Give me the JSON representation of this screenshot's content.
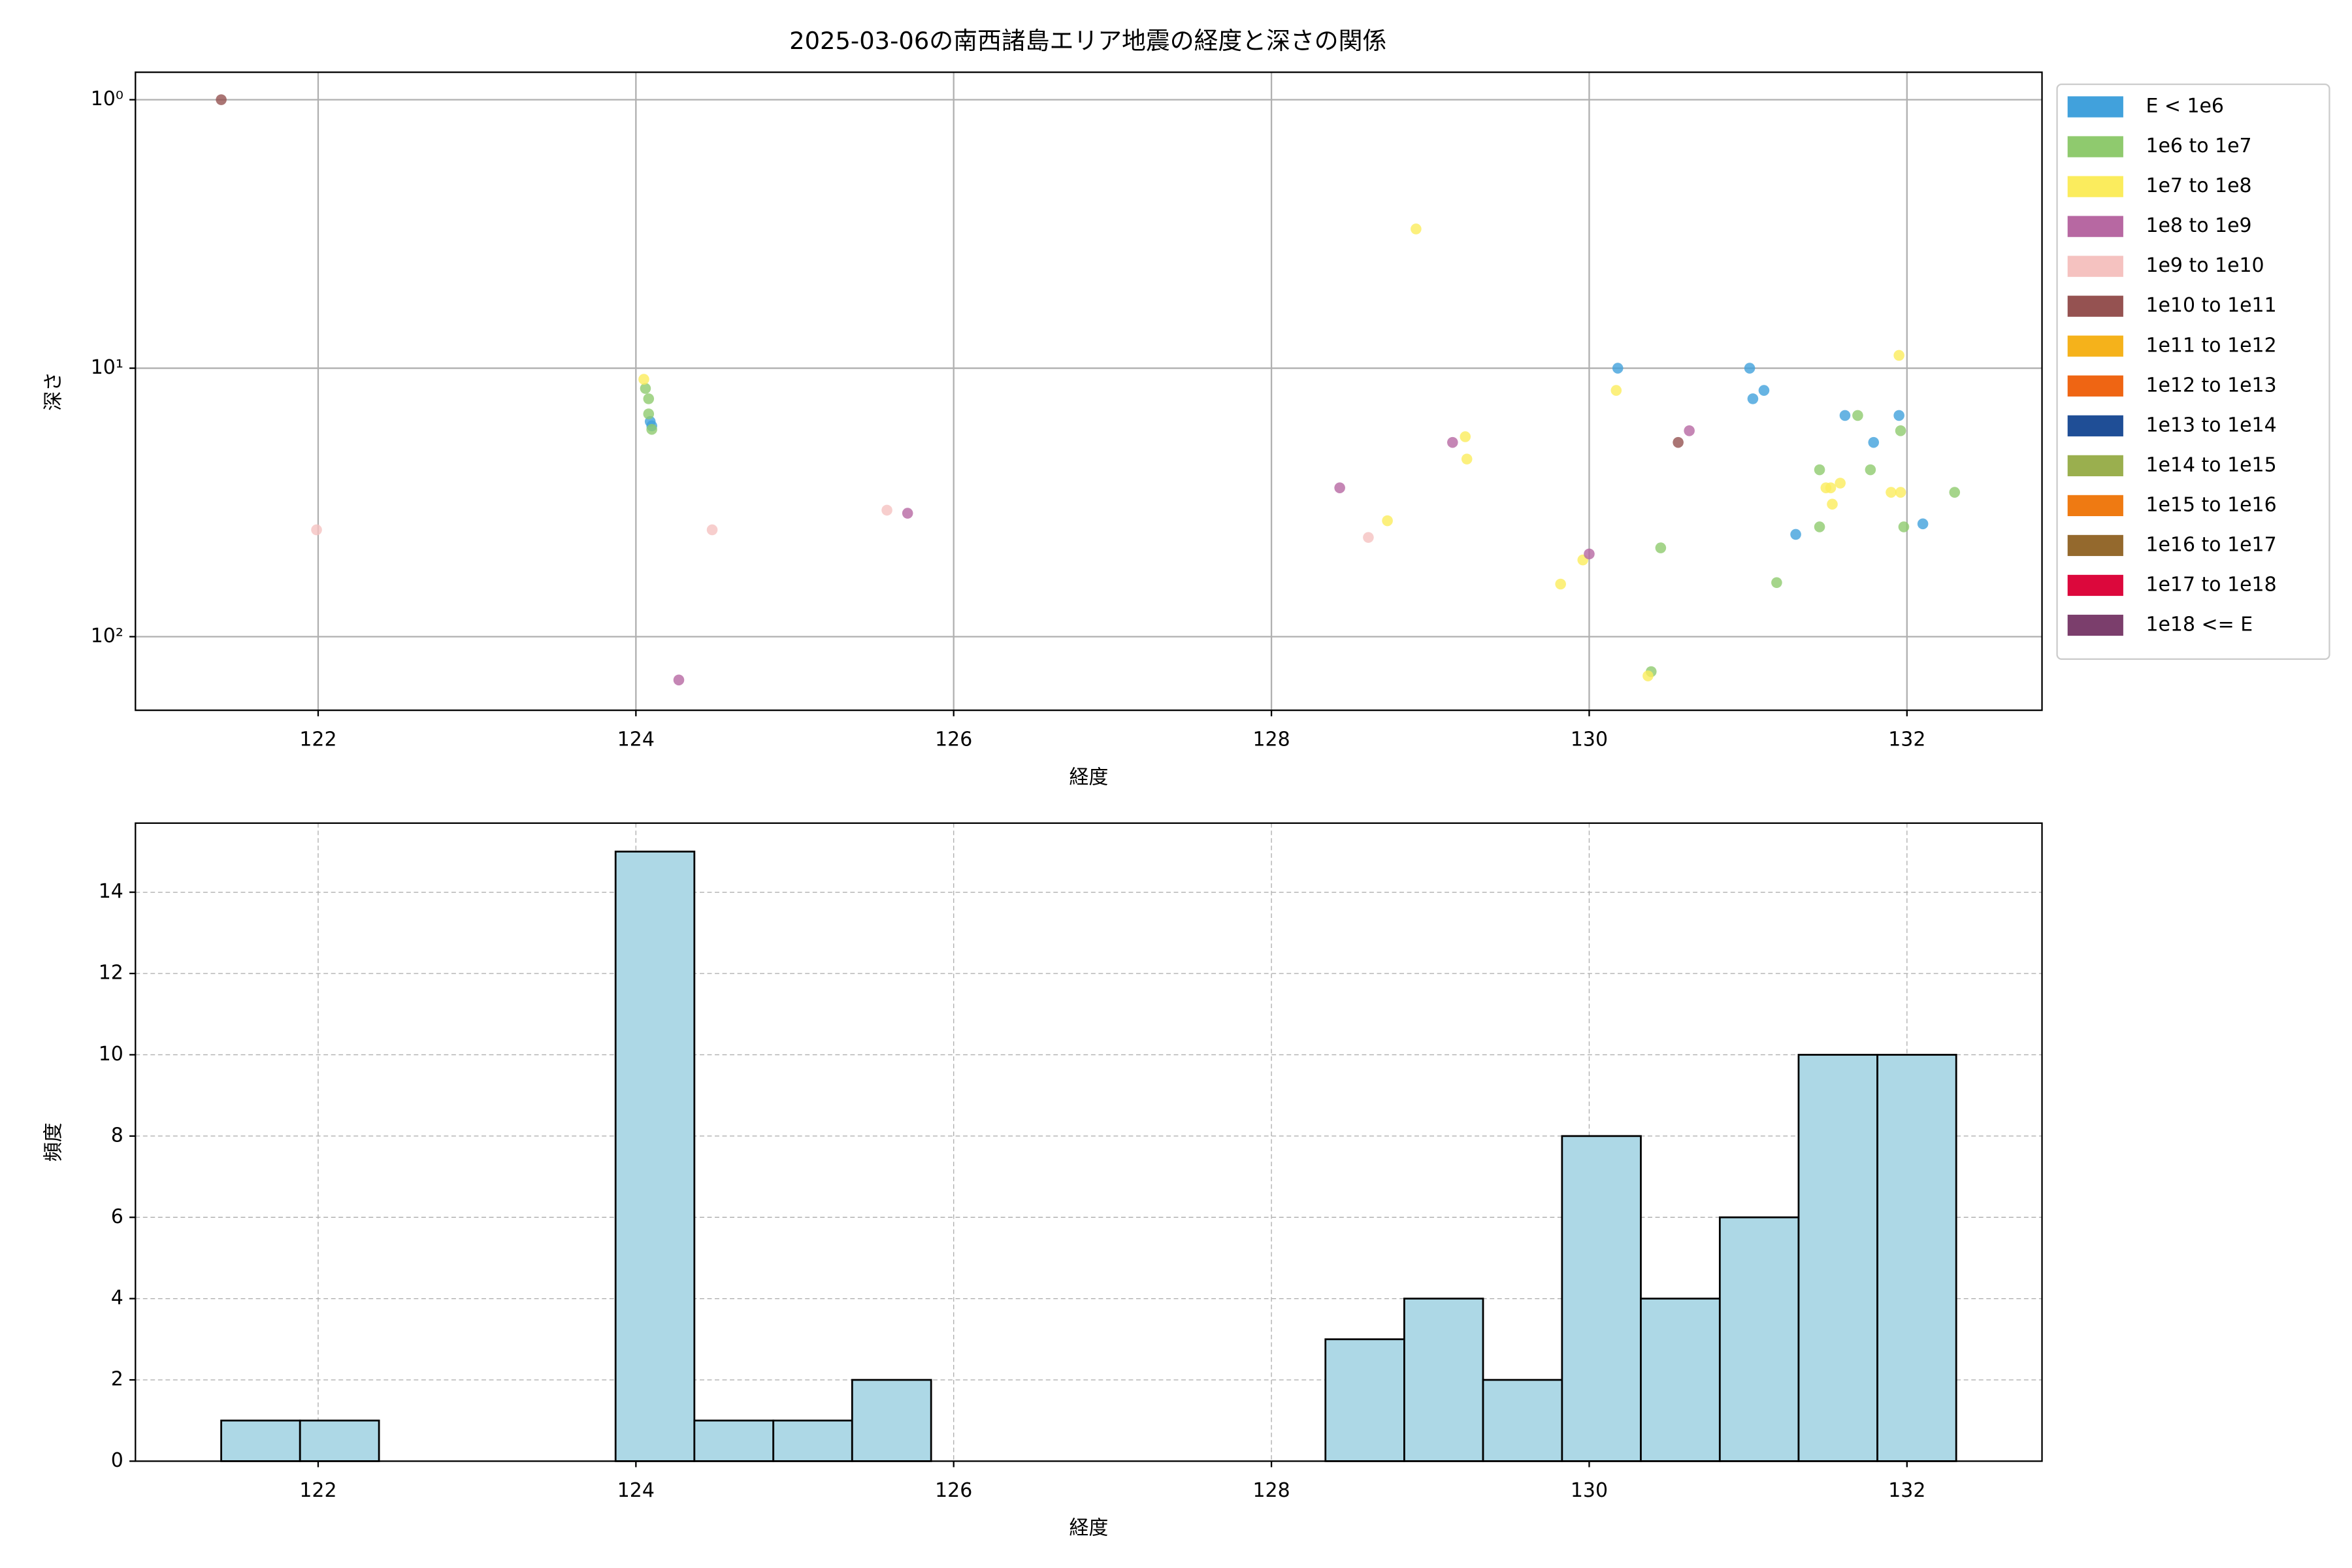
{
  "chart_data": [
    {
      "type": "scatter",
      "title": "2025-03-06の南西諸島エリア地震の経度と深さの関係",
      "xlabel": "経度",
      "ylabel": "深さ",
      "yscale": "log",
      "y_inverted": true,
      "grid": true,
      "legend": "outside upper right",
      "xlim": [
        120.85,
        132.85
      ],
      "xticks": [
        122,
        124,
        126,
        128,
        130,
        132
      ],
      "ylim": [
        0.79,
        188
      ],
      "yticks": [
        {
          "value": 1,
          "label": "10⁰"
        },
        {
          "value": 10,
          "label": "10¹"
        },
        {
          "value": 100,
          "label": "10²"
        }
      ],
      "series": [
        {
          "name": "E < 1e6",
          "color": "#41a1dc",
          "x": [
            124.09,
            124.1,
            130.18,
            131.01,
            131.03,
            131.1,
            131.61,
            131.95,
            131.79,
            131.3,
            132.1
          ],
          "values": [
            15.8,
            16.4,
            10,
            10,
            13.0,
            12.1,
            15.0,
            15.0,
            18.9,
            41.6,
            38.0
          ]
        },
        {
          "name": "1e6 to 1e7",
          "color": "#8fca6e",
          "x": [
            124.06,
            124.08,
            124.08,
            124.1,
            130.45,
            130.39,
            131.18,
            131.45,
            131.45,
            131.69,
            131.77,
            131.96,
            131.98,
            132.3
          ],
          "values": [
            11.9,
            13.0,
            14.8,
            16.9,
            46.7,
            135,
            62.9,
            23.9,
            39,
            15.0,
            23.9,
            17.1,
            39,
            29
          ]
        },
        {
          "name": "1e7 to 1e8",
          "color": "#fbec5d",
          "x": [
            124.05,
            128.91,
            129.22,
            129.23,
            128.73,
            130.17,
            129.96,
            129.82,
            130.37,
            131.95,
            131.49,
            131.52,
            131.58,
            131.53,
            131.9,
            131.96
          ],
          "values": [
            11.0,
            3.03,
            18,
            21.8,
            37,
            12.1,
            51.8,
            63.7,
            140,
            8.96,
            27.9,
            27.9,
            26.8,
            32.1,
            29,
            29
          ]
        },
        {
          "name": "1e8 to 1e9",
          "color": "#b768a2",
          "x": [
            128.43,
            129.14,
            130.0,
            130.63,
            125.71,
            124.27
          ],
          "values": [
            27.9,
            18.9,
            49.2,
            17.1,
            34.7,
            145
          ]
        },
        {
          "name": "1e9 to 1e10",
          "color": "#f5c2c0",
          "x": [
            121.99,
            124.48,
            125.58,
            128.61
          ],
          "values": [
            40,
            40,
            33.8,
            42.7
          ]
        },
        {
          "name": "1e10 to 1e11",
          "color": "#955251",
          "x": [
            121.39,
            130.56
          ],
          "values": [
            1.0,
            18.9
          ]
        },
        {
          "name": "1e11 to 1e12",
          "color": "#f5b21b",
          "x": [],
          "values": []
        },
        {
          "name": "1e12 to 1e13",
          "color": "#ef6513",
          "x": [],
          "values": []
        },
        {
          "name": "1e13 to 1e14",
          "color": "#1f4e96",
          "x": [],
          "values": []
        },
        {
          "name": "1e14 to 1e15",
          "color": "#9aaf4e",
          "x": [],
          "values": []
        },
        {
          "name": "1e15 to 1e16",
          "color": "#ef7a12",
          "x": [],
          "values": []
        },
        {
          "name": "1e16 to 1e17",
          "color": "#94692d",
          "x": [],
          "values": []
        },
        {
          "name": "1e17 to 1e18",
          "color": "#dc083c",
          "x": [],
          "values": []
        },
        {
          "name": "1e18 <= E",
          "color": "#7b3e6c",
          "x": [],
          "values": []
        }
      ]
    },
    {
      "type": "histogram",
      "xlabel": "経度",
      "ylabel": "頻度",
      "color": "#add8e6",
      "edgecolor": "#000000",
      "grid": true,
      "xlim": [
        120.85,
        132.85
      ],
      "xticks": [
        122,
        124,
        126,
        128,
        130,
        132
      ],
      "ylim": [
        0,
        15.7
      ],
      "yticks": [
        0,
        2,
        4,
        6,
        8,
        10,
        12,
        14
      ],
      "bins": [
        121.39,
        121.886,
        122.383,
        122.879,
        123.376,
        123.872,
        124.368,
        124.865,
        125.361,
        125.858,
        126.354,
        126.85,
        127.347,
        127.843,
        128.34,
        128.836,
        129.332,
        129.829,
        130.325,
        130.822,
        131.318,
        131.814,
        132.31
      ],
      "values": [
        1,
        1,
        0,
        0,
        0,
        15,
        1,
        1,
        2,
        0,
        0,
        0,
        0,
        0,
        3,
        4,
        2,
        8,
        4,
        6,
        10,
        10
      ]
    }
  ]
}
